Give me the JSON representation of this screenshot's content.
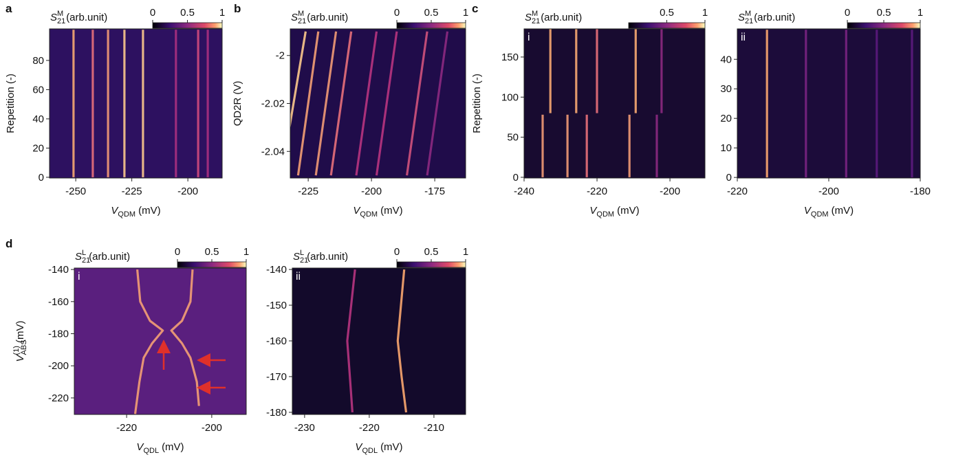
{
  "chart_data": [
    {
      "type": "heatmap",
      "panel": "a",
      "colorbar_label": {
        "symbol": "S",
        "sub": "21",
        "sup": "M",
        "unit": "(arb.unit)"
      },
      "clim": [
        0,
        1
      ],
      "colorbar_ticks": [
        0,
        0.5,
        1
      ],
      "xlabel": {
        "symbol": "V",
        "sub": "QDM",
        "unit": "(mV)"
      },
      "ylabel": "Repetition (-)",
      "xlim": [
        -261.7,
        -184.7
      ],
      "ylim": [
        -0.5,
        101.6
      ],
      "xticks": [
        -250,
        -225,
        -200
      ],
      "yticks": [
        0,
        20,
        40,
        60,
        80
      ],
      "color": "#2d1160",
      "series": [
        {
          "color": "#f7a872",
          "x": [
            -251.0,
            -251.0
          ],
          "y": [
            0,
            101
          ]
        },
        {
          "color": "#e8707a",
          "x": [
            -242.4,
            -242.4
          ],
          "y": [
            0,
            101
          ]
        },
        {
          "color": "#f19a75",
          "x": [
            -235.6,
            -235.6
          ],
          "y": [
            0,
            101
          ]
        },
        {
          "color": "#fbc88c",
          "x": [
            -228.3,
            -228.3
          ],
          "y": [
            0,
            101
          ]
        },
        {
          "color": "#fbc88c",
          "x": [
            -220.0,
            -220.0
          ],
          "y": [
            0,
            101
          ]
        },
        {
          "color": "#a8307f",
          "x": [
            -205.3,
            -205.3
          ],
          "y": [
            0,
            101
          ]
        },
        {
          "color": "#cf4a7c",
          "x": [
            -195.4,
            -195.4
          ],
          "y": [
            0,
            101
          ]
        },
        {
          "color": "#a8307f",
          "x": [
            -191.1,
            -191.1
          ],
          "y": [
            0,
            101
          ]
        }
      ]
    },
    {
      "type": "heatmap",
      "panel": "b",
      "colorbar_label": {
        "symbol": "S",
        "sub": "21",
        "sup": "M",
        "unit": "(arb.unit)"
      },
      "clim": [
        0,
        1
      ],
      "colorbar_ticks": [
        0,
        0.5,
        1
      ],
      "xlabel": {
        "symbol": "V",
        "sub": "QDM",
        "unit": "(mV)"
      },
      "ylabel": "QD2R (V)",
      "xlim": [
        -232.1,
        -162.8
      ],
      "ylim": [
        -2.0511,
        -1.9889
      ],
      "xticks": [
        -225,
        -200,
        -175
      ],
      "yticks": [
        -2,
        -2.02,
        -2.04
      ],
      "color": "#200c4a",
      "series": [
        {
          "color": "#fcc98c",
          "x": [
            -226,
            -234
          ],
          "y": [
            -1.99,
            -2.04
          ]
        },
        {
          "color": "#f4a074",
          "x": [
            -221,
            -229
          ],
          "y": [
            -1.99,
            -2.05
          ]
        },
        {
          "color": "#f19a75",
          "x": [
            -214,
            -222
          ],
          "y": [
            -1.99,
            -2.05
          ]
        },
        {
          "color": "#e8707a",
          "x": [
            -208,
            -216
          ],
          "y": [
            -1.99,
            -2.05
          ]
        },
        {
          "color": "#b8347f",
          "x": [
            -198,
            -206
          ],
          "y": [
            -1.99,
            -2.05
          ]
        },
        {
          "color": "#b8347f",
          "x": [
            -190,
            -198
          ],
          "y": [
            -1.99,
            -2.05
          ]
        },
        {
          "color": "#d0527c",
          "x": [
            -178,
            -186
          ],
          "y": [
            -1.99,
            -2.05
          ]
        },
        {
          "color": "#8c2981",
          "x": [
            -170,
            -178
          ],
          "y": [
            -1.99,
            -2.05
          ]
        }
      ]
    },
    {
      "type": "heatmap",
      "panel": "c",
      "inner_label": "i",
      "colorbar_label": {
        "symbol": "S",
        "sub": "21",
        "sup": "M",
        "unit": "(arb.unit)"
      },
      "clim": [
        0,
        1
      ],
      "colorbar_ticks": [
        0.5,
        1
      ],
      "xlabel": {
        "symbol": "V",
        "sub": "QDM",
        "unit": "(mV)"
      },
      "ylabel": "Repetition (-)",
      "xlim": [
        -240,
        -190.4
      ],
      "ylim": [
        -0.9,
        185.1
      ],
      "xticks": [
        -240,
        -220,
        -200
      ],
      "yticks": [
        0,
        50,
        100,
        150
      ],
      "color": "#180b30",
      "series": [
        {
          "color": "#f7a872",
          "x": [
            -232.8,
            -232.8
          ],
          "y": [
            80,
            185
          ]
        },
        {
          "color": "#f7a872",
          "x": [
            -225.7,
            -225.7
          ],
          "y": [
            80,
            185
          ]
        },
        {
          "color": "#e8707a",
          "x": [
            -220.0,
            -220.0
          ],
          "y": [
            80,
            185
          ]
        },
        {
          "color": "#f7a872",
          "x": [
            -209.4,
            -209.4
          ],
          "y": [
            80,
            185
          ]
        },
        {
          "color": "#8c2981",
          "x": [
            -202.3,
            -202.3
          ],
          "y": [
            80,
            185
          ]
        },
        {
          "color": "#f19a75",
          "x": [
            -234.9,
            -234.9
          ],
          "y": [
            0,
            78
          ]
        },
        {
          "color": "#f19a75",
          "x": [
            -228.1,
            -228.1
          ],
          "y": [
            0,
            78
          ]
        },
        {
          "color": "#e8707a",
          "x": [
            -222.8,
            -222.8
          ],
          "y": [
            0,
            78
          ]
        },
        {
          "color": "#f19a75",
          "x": [
            -211.1,
            -211.1
          ],
          "y": [
            0,
            78
          ]
        },
        {
          "color": "#8c2981",
          "x": [
            -203.6,
            -203.6
          ],
          "y": [
            0,
            78
          ]
        }
      ]
    },
    {
      "type": "heatmap",
      "inner_label": "ii",
      "colorbar_label": {
        "symbol": "S",
        "sub": "21",
        "sup": "M",
        "unit": "(arb.unit)"
      },
      "clim": [
        0,
        1
      ],
      "colorbar_ticks": [
        0,
        0.5,
        1
      ],
      "xlabel": {
        "symbol": "V",
        "sub": "QDM",
        "unit": "(mV)"
      },
      "xlim": [
        -220,
        -180
      ],
      "ylim": [
        -0.2,
        50.3
      ],
      "xticks": [
        -220,
        -200,
        -180
      ],
      "yticks": [
        0,
        10,
        20,
        30,
        40
      ],
      "color": "#1c0c3a",
      "series": [
        {
          "color": "#fba66f",
          "x": [
            -213.5,
            -213.5
          ],
          "y": [
            0,
            50
          ]
        },
        {
          "color": "#7a2482",
          "x": [
            -205.0,
            -205.0
          ],
          "y": [
            0,
            50
          ]
        },
        {
          "color": "#7a2482",
          "x": [
            -196.2,
            -196.2
          ],
          "y": [
            0,
            50
          ]
        },
        {
          "color": "#5c1a7d",
          "x": [
            -189.5,
            -189.5
          ],
          "y": [
            0,
            50
          ]
        },
        {
          "color": "#5c1a7d",
          "x": [
            -181.8,
            -181.8
          ],
          "y": [
            0,
            50
          ]
        }
      ]
    },
    {
      "type": "heatmap",
      "panel": "d",
      "inner_label": "i",
      "colorbar_label": {
        "symbol": "S",
        "sub": "21",
        "sup": "L",
        "unit": "(arb.unit)"
      },
      "clim": [
        0,
        1
      ],
      "colorbar_ticks": [
        0,
        0.5,
        1
      ],
      "xlabel": {
        "symbol": "V",
        "sub": "QDL",
        "unit": "(mV)"
      },
      "ylabel": {
        "symbol": "V",
        "sub": "ABS",
        "sup": "(1)",
        "unit": "(mV)"
      },
      "xlim": [
        -232.3,
        -191.9
      ],
      "ylim": [
        -230.3,
        -139.1
      ],
      "xticks": [
        -220,
        -200
      ],
      "yticks": [
        -140,
        -160,
        -180,
        -200,
        -220
      ],
      "color": "#5a1f7e",
      "series": [
        {
          "color": "#f4a074",
          "x": [
            -217.5,
            -216.8,
            -214.5,
            -211.5,
            -214,
            -216,
            -217,
            -218
          ],
          "y": [
            -140,
            -160,
            -172,
            -178,
            -186,
            -195,
            -210,
            -230
          ]
        },
        {
          "color": "#f4a074",
          "x": [
            -204.5,
            -205,
            -207,
            -209.5,
            -207,
            -205,
            -203.5,
            -203
          ],
          "y": [
            -140,
            -160,
            -172,
            -178,
            -186,
            -195,
            -210,
            -225
          ]
        }
      ]
    },
    {
      "type": "heatmap",
      "inner_label": "ii",
      "colorbar_label": {
        "symbol": "S",
        "sub": "21",
        "sup": "L",
        "unit": "(arb.unit)"
      },
      "clim": [
        0,
        1
      ],
      "colorbar_ticks": [
        0,
        0.5,
        1
      ],
      "xlabel": {
        "symbol": "V",
        "sub": "QDL",
        "unit": "(mV)"
      },
      "xlim": [
        -231.9,
        -205.1
      ],
      "ylim": [
        -180.6,
        -139.6
      ],
      "xticks": [
        -230,
        -220,
        -210
      ],
      "yticks": [
        -140,
        -150,
        -160,
        -170,
        -180
      ],
      "color": "#130a2b",
      "series": [
        {
          "color": "#b8347f",
          "x": [
            -222.2,
            -222.8,
            -223.4,
            -223.0,
            -222.6
          ],
          "y": [
            -140,
            -150,
            -160,
            -170,
            -180
          ]
        },
        {
          "color": "#fba66f",
          "x": [
            -214.6,
            -215.1,
            -215.6,
            -215.0,
            -214.3
          ],
          "y": [
            -140,
            -150,
            -160,
            -170,
            -180
          ]
        }
      ]
    }
  ]
}
